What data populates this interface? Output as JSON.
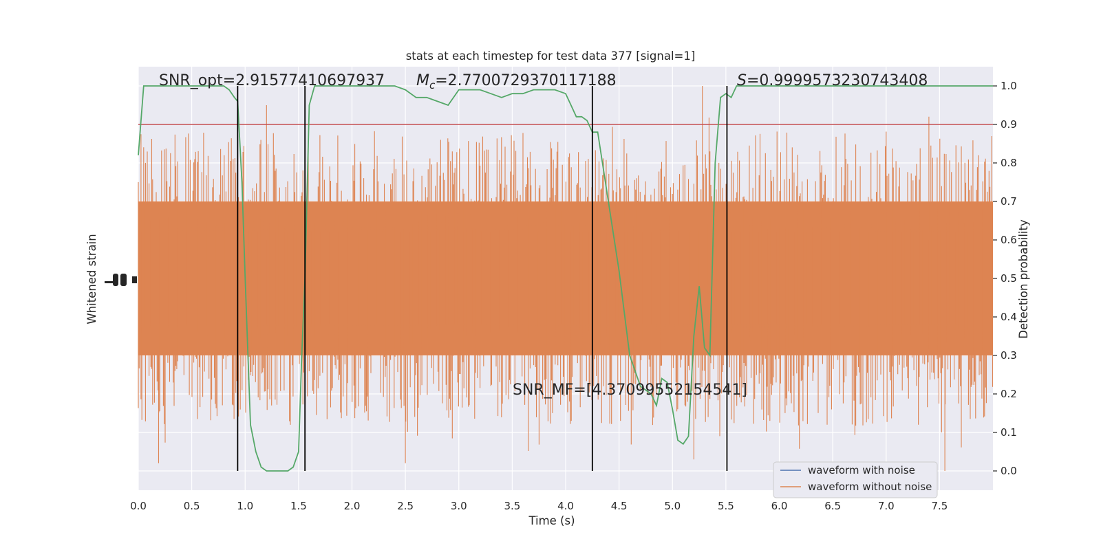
{
  "chart_data": {
    "type": "line",
    "title": "stats at each timestep for test data 377 [signal=1]",
    "xlabel": "Time (s)",
    "ylabel_left": "Whitened strain",
    "ylabel_right": "Detection probability",
    "xlim": [
      0.0,
      8.0
    ],
    "ylim_right": [
      -0.05,
      1.05
    ],
    "x_ticks": [
      "0.0",
      "0.5",
      "1.0",
      "1.5",
      "2.0",
      "2.5",
      "3.0",
      "3.5",
      "4.0",
      "4.5",
      "5.0",
      "5.5",
      "6.0",
      "6.5",
      "7.0",
      "7.5"
    ],
    "y_ticks_right": [
      "0.0",
      "0.1",
      "0.2",
      "0.3",
      "0.4",
      "0.5",
      "0.6",
      "0.7",
      "0.8",
      "0.9",
      "1.0"
    ],
    "grid": true,
    "annotations": {
      "snr_opt": "SNR_opt=2.91577410697937",
      "mc_symbol": "M",
      "mc_sub": "c",
      "mc_value": "=2.7700729370117188",
      "s_symbol": "S",
      "s_value": "=0.9999573230743408",
      "snr_mf": "SNR_MF=[4.37099552154541]"
    },
    "threshold": 0.9,
    "vertical_lines_x": [
      0.93,
      1.56,
      4.25,
      5.51
    ],
    "series": [
      {
        "name": "waveform with noise",
        "color": "#4c72b0"
      },
      {
        "name": "waveform without noise",
        "color": "#dd8452"
      }
    ],
    "strain_envelope": {
      "dense_band": [
        0.3,
        0.7
      ],
      "typical_spikes": [
        0.17,
        0.83
      ],
      "max_spike": 1.0,
      "min_spike": 0.0
    },
    "detection_probability": {
      "color": "#55a868",
      "x": [
        0.0,
        0.05,
        0.1,
        0.2,
        0.3,
        0.4,
        0.5,
        0.6,
        0.7,
        0.8,
        0.85,
        0.9,
        0.93,
        0.97,
        1.0,
        1.05,
        1.1,
        1.15,
        1.2,
        1.3,
        1.4,
        1.45,
        1.5,
        1.53,
        1.56,
        1.6,
        1.65,
        1.7,
        1.8,
        2.0,
        2.2,
        2.4,
        2.5,
        2.6,
        2.7,
        2.8,
        2.9,
        3.0,
        3.1,
        3.2,
        3.3,
        3.4,
        3.5,
        3.6,
        3.7,
        3.8,
        3.9,
        4.0,
        4.05,
        4.1,
        4.15,
        4.2,
        4.25,
        4.3,
        4.4,
        4.5,
        4.6,
        4.7,
        4.8,
        4.85,
        4.9,
        4.95,
        5.0,
        5.05,
        5.1,
        5.15,
        5.2,
        5.25,
        5.3,
        5.35,
        5.4,
        5.45,
        5.5,
        5.55,
        5.6,
        5.65,
        5.7,
        5.75,
        5.8,
        6.0,
        7.0,
        8.0
      ],
      "y": [
        0.82,
        1.0,
        1.0,
        1.0,
        1.0,
        1.0,
        1.0,
        1.0,
        1.0,
        1.0,
        0.99,
        0.97,
        0.96,
        0.75,
        0.5,
        0.12,
        0.05,
        0.01,
        0.0,
        0.0,
        0.0,
        0.01,
        0.05,
        0.3,
        0.5,
        0.95,
        1.0,
        1.0,
        1.0,
        1.0,
        1.0,
        1.0,
        0.99,
        0.97,
        0.97,
        0.96,
        0.95,
        0.99,
        0.99,
        0.99,
        0.98,
        0.97,
        0.98,
        0.98,
        0.99,
        0.99,
        0.99,
        0.98,
        0.95,
        0.92,
        0.92,
        0.91,
        0.88,
        0.88,
        0.7,
        0.52,
        0.3,
        0.22,
        0.2,
        0.17,
        0.24,
        0.23,
        0.16,
        0.08,
        0.07,
        0.09,
        0.35,
        0.48,
        0.32,
        0.3,
        0.8,
        0.97,
        0.98,
        0.97,
        1.0,
        1.0,
        1.0,
        1.0,
        1.0,
        1.0,
        1.0,
        1.0
      ]
    },
    "legend_loc": "lower right"
  }
}
